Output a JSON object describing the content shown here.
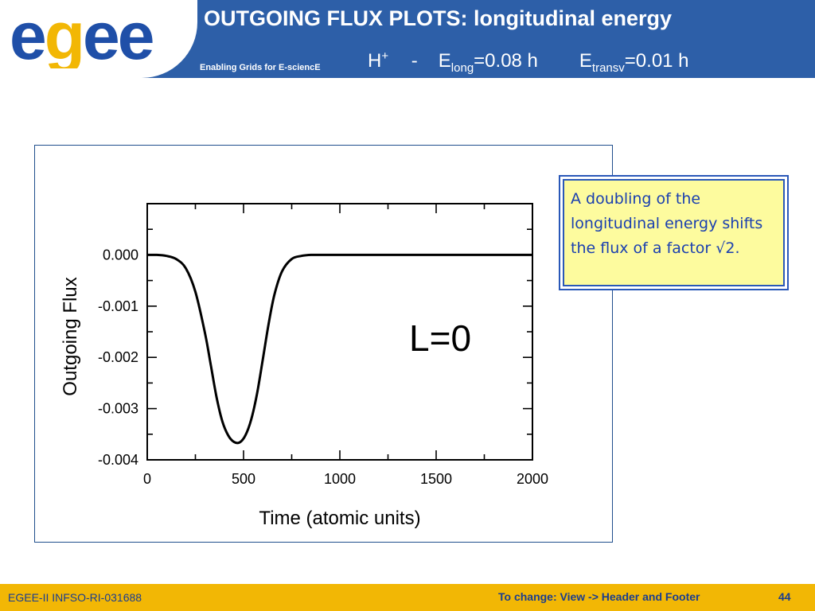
{
  "header": {
    "logo_text": "egee",
    "tagline": "Enabling Grids for E-sciencE",
    "title": "OUTGOING FLUX PLOTS: longitudinal energy",
    "subtitle": {
      "ion": "H",
      "ion_charge": "+",
      "separator": "-",
      "e_long_symbol": "E",
      "e_long_sub": "long",
      "e_long_value": "=0.08 h",
      "e_transv_symbol": "E",
      "e_transv_sub": "transv",
      "e_transv_value": "=0.01 h"
    }
  },
  "callout": {
    "text": "A doubling of the longitudinal energy shifts the flux of a factor √2."
  },
  "chart_data": {
    "type": "line",
    "xlabel": "Time (atomic units)",
    "ylabel": "Outgoing Flux",
    "xlim": [
      0,
      2000
    ],
    "ylim": [
      -0.004,
      0.001
    ],
    "xticks": [
      0,
      500,
      1000,
      1500,
      2000
    ],
    "xtick_labels": [
      "0",
      "500",
      "1000",
      "1500",
      "2000"
    ],
    "yticks": [
      0.0,
      -0.001,
      -0.002,
      -0.003,
      -0.004
    ],
    "ytick_labels": [
      "0.000",
      "-0.001",
      "-0.002",
      "-0.003",
      "-0.004"
    ],
    "annotation": "L=0",
    "grid": false,
    "series": [
      {
        "x": [
          0,
          50,
          100,
          150,
          200,
          250,
          300,
          330,
          360,
          390,
          420,
          450,
          480,
          510,
          540,
          570,
          600,
          630,
          660,
          700,
          750,
          800,
          850,
          900,
          1000,
          1250,
          1500,
          1750,
          2000
        ],
        "y": [
          0.0,
          0.0,
          -2e-05,
          -8e-05,
          -0.00026,
          -0.00072,
          -0.00153,
          -0.00215,
          -0.00278,
          -0.00325,
          -0.00352,
          -0.00365,
          -0.00366,
          -0.00352,
          -0.00321,
          -0.00271,
          -0.00204,
          -0.00135,
          -0.00078,
          -0.00032,
          -8e-05,
          -2e-05,
          0.0,
          0.0,
          0.0,
          0.0,
          0.0,
          0.0,
          0.0
        ]
      }
    ]
  },
  "footer": {
    "left": "EGEE-II INFSO-RI-031688",
    "hint": "To change: View -> Header and Footer",
    "page": "44"
  },
  "colors": {
    "header_blue": "#2d5fa8",
    "footer_gold": "#f2b705",
    "callout_fill": "#fdfb9e",
    "callout_text": "#1a3fb0",
    "logo_blue": "#1f4fa8",
    "logo_gold": "#f2b705"
  }
}
